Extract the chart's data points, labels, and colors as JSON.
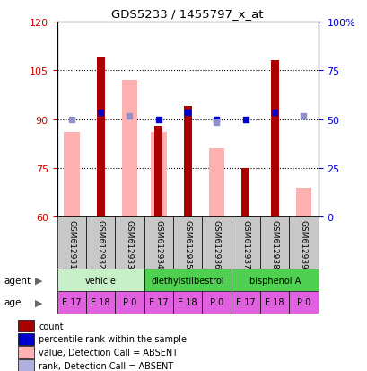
{
  "title": "GDS5233 / 1455797_x_at",
  "samples": [
    "GSM612931",
    "GSM612932",
    "GSM612933",
    "GSM612934",
    "GSM612935",
    "GSM612936",
    "GSM612937",
    "GSM612938",
    "GSM612939"
  ],
  "red_bar_heights": [
    null,
    109,
    null,
    88,
    94,
    null,
    75,
    108,
    null
  ],
  "pink_bar_heights": [
    86,
    null,
    102,
    86,
    null,
    81,
    null,
    null,
    69
  ],
  "blue_square_y": [
    null,
    92,
    null,
    90,
    92,
    90,
    90,
    92,
    null
  ],
  "light_blue_square_y": [
    90,
    null,
    91,
    null,
    null,
    89,
    null,
    null,
    91
  ],
  "ylim_left": [
    60,
    120
  ],
  "ylim_right": [
    0,
    100
  ],
  "yticks_left": [
    60,
    75,
    90,
    105,
    120
  ],
  "yticks_right": [
    0,
    25,
    50,
    75,
    100
  ],
  "ytick_labels_right": [
    "0",
    "25",
    "50",
    "75",
    "100%"
  ],
  "agent_groups": [
    {
      "label": "vehicle",
      "start": 0,
      "end": 3,
      "color": "#c8f0c8"
    },
    {
      "label": "diethylstilbestrol",
      "start": 3,
      "end": 6,
      "color": "#50d050"
    },
    {
      "label": "bisphenol A",
      "start": 6,
      "end": 9,
      "color": "#50d050"
    }
  ],
  "age_labels": [
    "E 17",
    "E 18",
    "P 0",
    "E 17",
    "E 18",
    "P 0",
    "E 17",
    "E 18",
    "P 0"
  ],
  "age_color": "#e060e0",
  "legend_items": [
    {
      "label": "count",
      "color": "#aa0000"
    },
    {
      "label": "percentile rank within the sample",
      "color": "#0000cc"
    },
    {
      "label": "value, Detection Call = ABSENT",
      "color": "#ffb0b0"
    },
    {
      "label": "rank, Detection Call = ABSENT",
      "color": "#b0b0e0"
    }
  ],
  "red_color": "#aa0000",
  "pink_color": "#ffb0b0",
  "blue_color": "#0000cc",
  "light_blue_color": "#9090cc",
  "left_tick_color": "#cc0000",
  "right_tick_color": "#0000cc",
  "sample_label_bg": "#c8c8c8",
  "fig_width": 4.1,
  "fig_height": 4.14,
  "dpi": 100
}
